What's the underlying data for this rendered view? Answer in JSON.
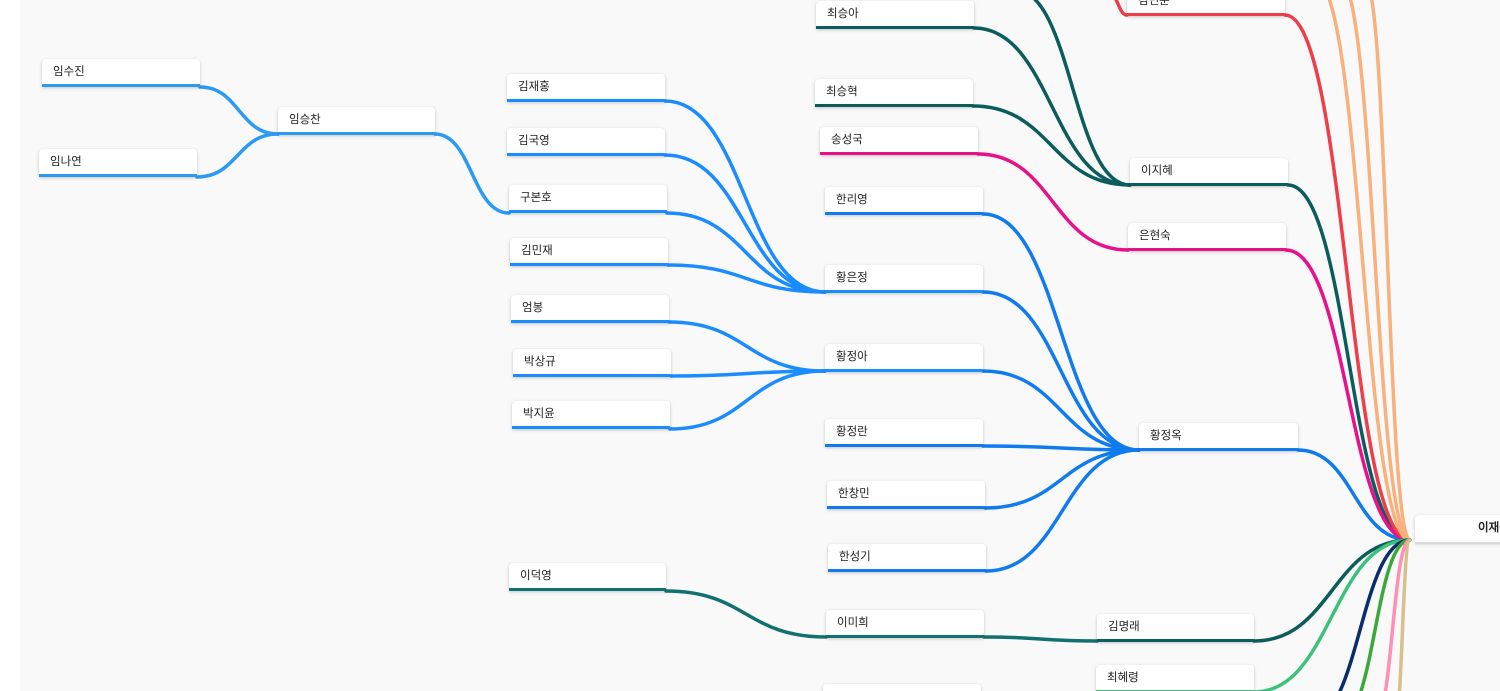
{
  "colors": {
    "blue": "#2b9af3",
    "blue_bright": "#1a8cff",
    "blue_root": "#0f7bef",
    "teal_dark": "#0b5c5c",
    "teal": "#137070",
    "magenta": "#e8118c",
    "red": "#ef3d4a",
    "peach": "#f8b17c",
    "green": "#3cc27a",
    "navy": "#0b2d6b",
    "green2": "#3aa83a",
    "pink": "#ff8fb5",
    "tan": "#d8c08a"
  },
  "nodes": {
    "im_sujin": "임수진",
    "im_nayeon": "임나연",
    "im_seungchan": "임승찬",
    "kim_jaehong": "김재홍",
    "kim_gukyeong": "김국영",
    "gu_bonho": "구본호",
    "kim_minjae": "김민재",
    "eom_bong": "엄봉",
    "park_sanggyu": "박상규",
    "park_jiyun": "박지윤",
    "choi_seunga": "최승아",
    "choi_seunghyeok": "최승혁",
    "song_seongguk": "송성국",
    "han_riyeong": "한리영",
    "hwang_eunjeong": "황은정",
    "hwang_jeonga": "황정아",
    "hwang_jeongran": "황정란",
    "han_changmin": "한창민",
    "han_seonggi": "한성기",
    "lee_deokyeong": "이덕영",
    "lee_mihui": "이미희",
    "kim_indun": "김민준",
    "lee_jihye": "이지혜",
    "eun_hyeonsuk": "은현숙",
    "hwang_jeongok": "황정옥",
    "kim_myeongrae": "김명래",
    "choi_hyeryeong": "최혜령",
    "root": "이재석"
  }
}
